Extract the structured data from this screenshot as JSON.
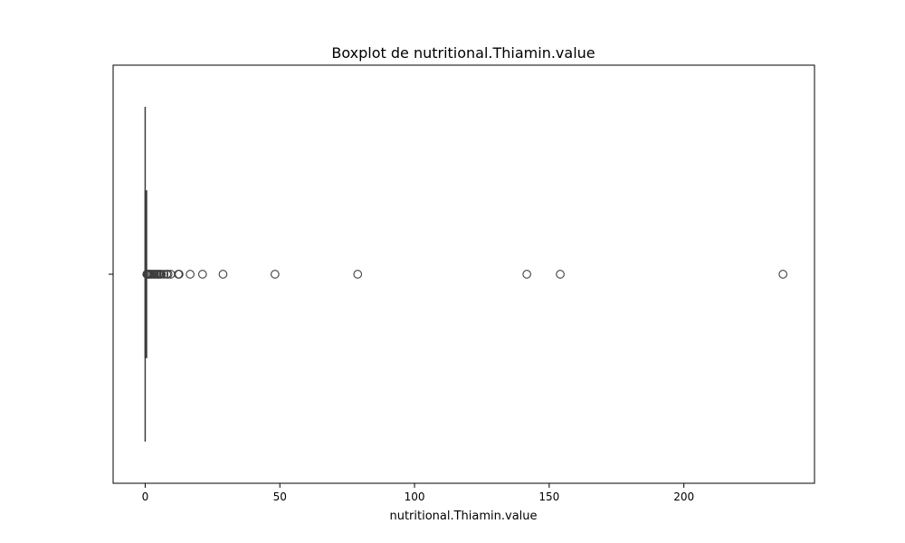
{
  "chart_data": {
    "type": "boxplot",
    "title": "Boxplot de nutritional.Thiamin.value",
    "xlabel": "nutritional.Thiamin.value",
    "ylabel": "",
    "xlim": [
      -11.9,
      248.5
    ],
    "xticks": [
      0,
      50,
      100,
      150,
      200
    ],
    "grid": false,
    "legend": false,
    "box": {
      "min": 0,
      "q1": 0.02,
      "median": 0.06,
      "q3": 0.2,
      "max": 0.45
    },
    "outliers": [
      0.6,
      0.8,
      1.0,
      1.3,
      1.6,
      2.0,
      2.5,
      3.0,
      3.5,
      4.0,
      4.5,
      5.0,
      5.5,
      6.0,
      7.0,
      8.0,
      8.5,
      9.5,
      12.3,
      12.6,
      16.7,
      21.3,
      28.9,
      48.2,
      78.9,
      141.7,
      154.1,
      236.8
    ],
    "colors": {
      "box": "#3d3d3d",
      "outlier_edge": "#3d3d3d",
      "frame": "#000000"
    }
  }
}
